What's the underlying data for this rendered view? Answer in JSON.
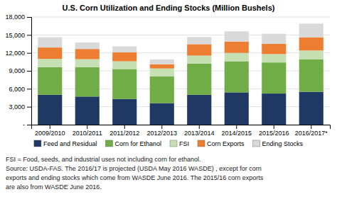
{
  "chart_data": {
    "type": "bar",
    "stacked": true,
    "title": "U.S. Corn Utilization and Ending Stocks (Million Bushels)",
    "categories": [
      "2009/2010",
      "2010/2011",
      "2011/2012",
      "2012/2013",
      "2013/2014",
      "2014/2015",
      "2015/2016",
      "2016/2017*"
    ],
    "series": [
      {
        "name": "Feed and Residual",
        "color": "#1F3864",
        "values": [
          5000,
          4700,
          4300,
          3600,
          5000,
          5400,
          5200,
          5500
        ]
      },
      {
        "name": "Corn for Ethanol",
        "color": "#70AD47",
        "values": [
          4600,
          4900,
          5000,
          4500,
          5200,
          5200,
          5200,
          5450
        ]
      },
      {
        "name": "FSI",
        "color": "#C6E0B4",
        "values": [
          1400,
          1350,
          1300,
          1300,
          1350,
          1400,
          1400,
          1450
        ]
      },
      {
        "name": "Corn Exports",
        "color": "#ED7D31",
        "values": [
          1900,
          1700,
          1500,
          700,
          1900,
          1900,
          1700,
          2200
        ]
      },
      {
        "name": "Ending Stocks",
        "color": "#D9D9D9",
        "values": [
          1700,
          1100,
          990,
          820,
          1200,
          1700,
          1700,
          2300
        ]
      }
    ],
    "ylim": [
      0,
      18000
    ],
    "yticks": [
      {
        "value": 0,
        "label": "-"
      },
      {
        "value": 3000,
        "label": "3,000"
      },
      {
        "value": 6000,
        "label": "6,000"
      },
      {
        "value": 9000,
        "label": "9,000"
      },
      {
        "value": 12000,
        "label": "12,000"
      },
      {
        "value": 15000,
        "label": "15,000"
      },
      {
        "value": 18000,
        "label": "18,000"
      }
    ],
    "grid": true,
    "legend": "bottom",
    "annotations": [
      "FSI = Food, seeds, and industrial uses not including corn for ethanol.",
      "Source: USDA-FAS. The 2016/17 is projected (USDA May 2016 WASDE) , except for corn",
      "exports and ending stocks which come from WASDE June 2016.  The 2015/16 corn exports",
      "are also from WASDE June 2016."
    ]
  }
}
